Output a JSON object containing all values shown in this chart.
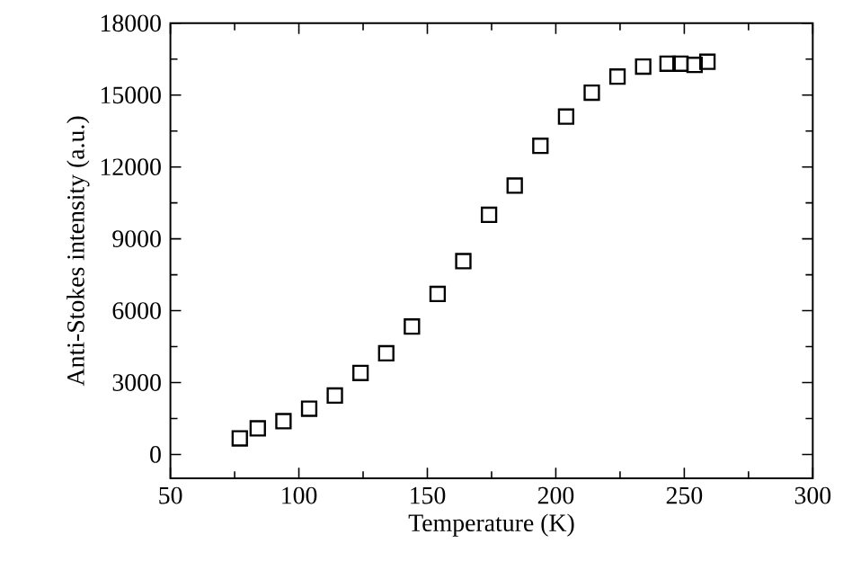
{
  "chart_data": {
    "type": "scatter",
    "xlabel": "Temperature (K)",
    "ylabel": "Anti-Stokes intensity (a.u.)",
    "marker": "square",
    "color": "#000000",
    "x": [
      77,
      84,
      94,
      104,
      114,
      124,
      134,
      144,
      154,
      164,
      174,
      184,
      194,
      204,
      214,
      224,
      234,
      243.5,
      248.5,
      254,
      259
    ],
    "values": [
      670,
      1090,
      1390,
      1910,
      2460,
      3400,
      4220,
      5340,
      6700,
      8070,
      10000,
      11220,
      12880,
      14100,
      15100,
      15770,
      16190,
      16310,
      16310,
      16260,
      16390
    ],
    "xlim": [
      50,
      300
    ],
    "xticks": [
      50,
      100,
      150,
      200,
      250,
      300
    ],
    "ylim": [
      -1000,
      18000
    ],
    "yticks": [
      0,
      3000,
      6000,
      9000,
      12000,
      15000,
      18000
    ]
  }
}
